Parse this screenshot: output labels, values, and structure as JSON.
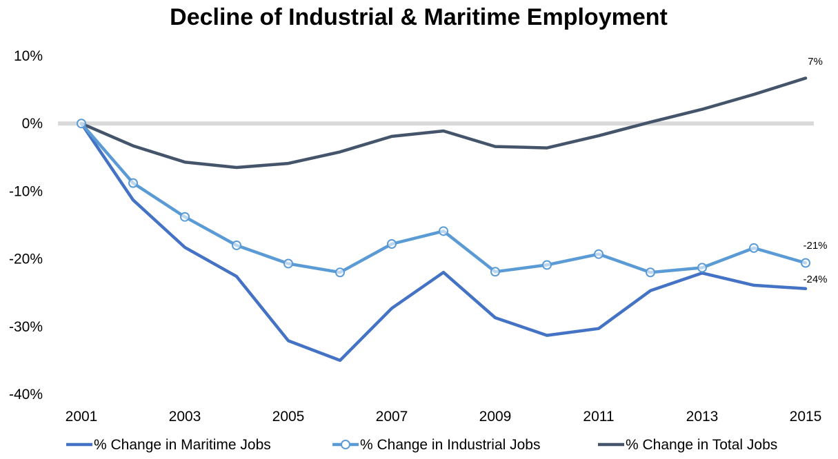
{
  "chart_data": {
    "type": "line",
    "title": "Decline of Industrial & Maritime Employment",
    "xlabel": "",
    "ylabel": "",
    "x": [
      2001,
      2002,
      2003,
      2004,
      2005,
      2006,
      2007,
      2008,
      2009,
      2010,
      2011,
      2012,
      2013,
      2014,
      2015
    ],
    "x_tick_labels": [
      "2001",
      "2003",
      "2005",
      "2007",
      "2009",
      "2011",
      "2013",
      "2015"
    ],
    "y_tick_labels": [
      "10%",
      "0%",
      "-10%",
      "-20%",
      "-30%",
      "-40%"
    ],
    "ylim": [
      -40,
      10
    ],
    "y_unit": "%",
    "zero_line": true,
    "grid": false,
    "legend_position": "bottom",
    "series": [
      {
        "name": "% Change in Maritime Jobs",
        "color": "#4472C4",
        "marker": "none",
        "values": [
          0,
          -11.3,
          -18.3,
          -22.6,
          -32.1,
          -35.0,
          -27.3,
          -22.0,
          -28.7,
          -31.3,
          -30.3,
          -24.7,
          -22.1,
          -23.9,
          -24.4
        ],
        "end_label": "-24%"
      },
      {
        "name": "% Change in Industrial Jobs",
        "color": "#5B9BD5",
        "marker": "circle",
        "values": [
          0,
          -8.8,
          -13.8,
          -18.0,
          -20.7,
          -22.0,
          -17.8,
          -15.9,
          -21.9,
          -20.9,
          -19.3,
          -22.0,
          -21.3,
          -18.4,
          -20.6
        ],
        "end_label": "-21%"
      },
      {
        "name": "% Change in Total Jobs",
        "color": "#44546A",
        "marker": "none",
        "values": [
          0,
          -3.3,
          -5.7,
          -6.5,
          -5.9,
          -4.2,
          -1.9,
          -1.1,
          -3.4,
          -3.6,
          -1.8,
          0.2,
          2.1,
          4.3,
          6.7
        ],
        "end_label": "7%"
      }
    ]
  }
}
